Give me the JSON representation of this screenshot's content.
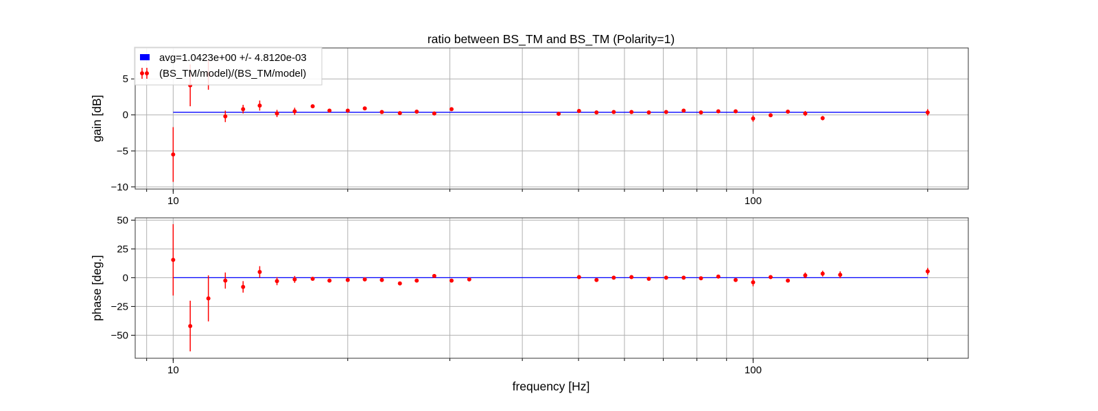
{
  "chart_data": {
    "title": "ratio between BS_TM and BS_TM (Polarity=1)",
    "xlabel": "frequency [Hz]",
    "xscale": "log",
    "xlim": [
      8.6,
      235
    ],
    "grid": true,
    "legend": {
      "placement": "top-left",
      "entries": [
        {
          "label": "avg=1.0423e+00 +/- 4.8120e-03",
          "color": "#0000ff",
          "marker": "patch"
        },
        {
          "label": "(BS_TM/model)/(BS_TM/model)",
          "color": "#ff0000",
          "marker": "errorbar"
        }
      ]
    },
    "x_tick_labels": [
      {
        "value": 10,
        "label": "10"
      },
      {
        "value": 100,
        "label": "100"
      }
    ],
    "x_minor_ticks": [
      9,
      20,
      30,
      40,
      50,
      60,
      70,
      80,
      90,
      200
    ],
    "x": [
      10,
      10.7,
      11.5,
      12.3,
      13.2,
      14.1,
      15.1,
      16.2,
      17.4,
      18.6,
      20,
      21.4,
      22.9,
      24.6,
      26.3,
      28.2,
      30.2,
      32.4,
      34.7,
      37.2,
      46.2,
      50.1,
      53.7,
      57.5,
      61.7,
      66.1,
      70.8,
      75.9,
      81.3,
      87.1,
      93.3,
      100,
      107.2,
      114.8,
      123,
      131.8,
      141.3,
      151.4,
      162.2,
      200
    ],
    "panels": [
      {
        "name": "gain",
        "ylabel": "gain [dB]",
        "ylim": [
          -10.3,
          9.3
        ],
        "yticks": [
          {
            "value": 5,
            "label": "5"
          },
          {
            "value": 0,
            "label": "0"
          },
          {
            "value": -5,
            "label": "−5"
          },
          {
            "value": -10,
            "label": "−10"
          }
        ],
        "avg_line": {
          "value": 0.36,
          "xrange": [
            10,
            200
          ],
          "color": "#0000ff"
        },
        "series": {
          "color": "#ff0000",
          "y": [
            -5.5,
            4.1,
            5.6,
            -0.2,
            0.8,
            1.3,
            0.2,
            0.5,
            1.2,
            0.6,
            0.6,
            0.9,
            0.4,
            0.25,
            0.45,
            0.2,
            0.8,
            0.25,
            0.25,
            0.25,
            0.15,
            0.55,
            0.35,
            0.4,
            0.4,
            0.35,
            0.4,
            0.6,
            0.35,
            0.5,
            0.5,
            -0.5,
            -0.05,
            0.45,
            0.2,
            -0.45,
            0.85,
            0.2,
            0.2,
            0.35
          ],
          "err": [
            3.8,
            2.9,
            2.1,
            0.8,
            0.6,
            0.7,
            0.5,
            0.5,
            0.15,
            0.15,
            0.15,
            0.15,
            0.15,
            0.15,
            0.15,
            0.15,
            0.15,
            0.15,
            0.15,
            0.15,
            0.15,
            0.15,
            0.15,
            0.15,
            0.15,
            0.15,
            0.15,
            0.15,
            0.15,
            0.15,
            0.15,
            0.45,
            0.25,
            0.15,
            0.35,
            0.3,
            0.45,
            0.2,
            0.2,
            0.45
          ],
          "hidden_indices": [
            17,
            18,
            19,
            36,
            37,
            38
          ]
        }
      },
      {
        "name": "phase",
        "ylabel": "phase [deg.]",
        "ylim": [
          -70,
          52
        ],
        "yticks": [
          {
            "value": 50,
            "label": "50"
          },
          {
            "value": 25,
            "label": "25"
          },
          {
            "value": 0,
            "label": "0"
          },
          {
            "value": -25,
            "label": "−25"
          },
          {
            "value": -50,
            "label": "−50"
          }
        ],
        "avg_line": {
          "value": 0,
          "xrange": [
            10,
            200
          ],
          "color": "#0000ff"
        },
        "series": {
          "color": "#ff0000",
          "y": [
            15.5,
            -42,
            -18,
            -2.5,
            -8,
            5,
            -3,
            -1.5,
            -1,
            -2.5,
            -2,
            -1.5,
            -2,
            -5,
            -2.5,
            1.5,
            -2.5,
            -1.5,
            -2,
            -1.5,
            -1,
            0.5,
            -2,
            0,
            0.5,
            -1,
            0,
            0,
            -0.5,
            1,
            -2,
            -4,
            0.5,
            -2.5,
            2,
            3.5,
            2.5,
            2,
            2,
            5.5
          ],
          "err": [
            31,
            22,
            20,
            7,
            5,
            5,
            3.5,
            3,
            0.8,
            0.8,
            0.8,
            0.8,
            0.8,
            0.8,
            0.8,
            0.8,
            0.8,
            0.8,
            0.8,
            0.8,
            0.8,
            0.8,
            0.8,
            0.8,
            0.8,
            0.8,
            0.8,
            0.8,
            0.8,
            0.8,
            0.8,
            3.5,
            1.5,
            1.2,
            2.5,
            2.5,
            3,
            2,
            2,
            3
          ],
          "hidden_indices": [
            18,
            19,
            20,
            37,
            38
          ]
        }
      }
    ]
  }
}
